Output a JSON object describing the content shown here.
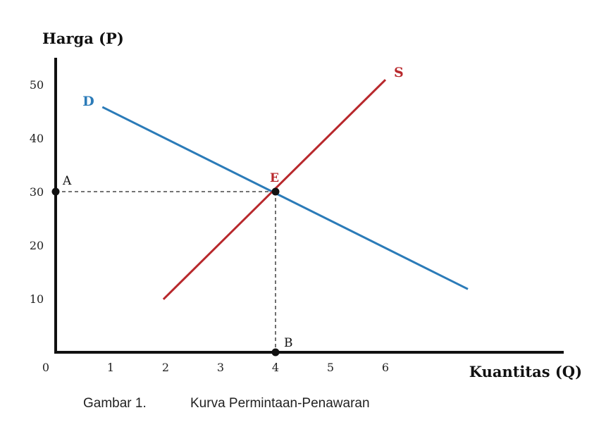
{
  "chart_data": {
    "type": "line",
    "ylabel": "Harga (P)",
    "xlabel": "Kuantitas (Q)",
    "xlim": [
      0,
      9
    ],
    "ylim": [
      0,
      55
    ],
    "x_ticks": [
      0,
      1,
      2,
      3,
      4,
      5,
      6
    ],
    "y_ticks": [
      10,
      20,
      30,
      40,
      50
    ],
    "grid": false,
    "series": [
      {
        "name": "D",
        "color": "#2b7bb8",
        "points": [
          [
            0.85,
            45.8
          ],
          [
            7.5,
            11.8
          ]
        ]
      },
      {
        "name": "S",
        "color": "#b8282c",
        "points": [
          [
            1.96,
            9.9
          ],
          [
            6.0,
            50.9
          ]
        ]
      }
    ],
    "points": [
      {
        "label": "E",
        "x": 4,
        "y": 30,
        "color": "#b8282c"
      },
      {
        "label": "A",
        "x": 0,
        "y": 30,
        "color": "#111111"
      },
      {
        "label": "B",
        "x": 4,
        "y": 0,
        "color": "#111111"
      }
    ],
    "guides": [
      {
        "from": [
          0,
          30
        ],
        "to": [
          4,
          30
        ]
      },
      {
        "from": [
          4,
          30
        ],
        "to": [
          4,
          0
        ]
      }
    ]
  },
  "caption": {
    "number": "Gambar 1.",
    "title": "Kurva Permintaan-Penawaran"
  }
}
